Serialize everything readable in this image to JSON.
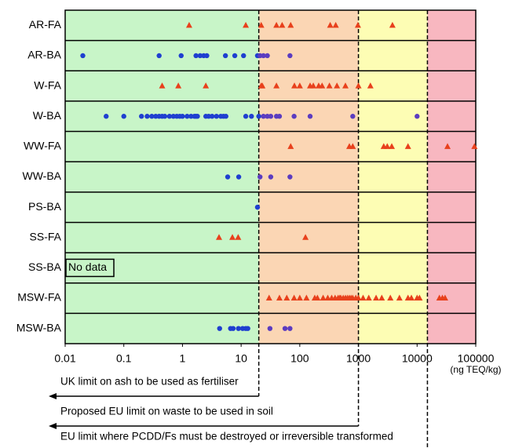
{
  "chart_data": {
    "type": "strip",
    "categories": [
      "AR-FA",
      "AR-BA",
      "W-FA",
      "W-BA",
      "WW-FA",
      "WW-BA",
      "PS-BA",
      "SS-FA",
      "SS-BA",
      "MSW-FA",
      "MSW-BA"
    ],
    "markers": [
      "triangle",
      "circle",
      "triangle",
      "circle",
      "triangle",
      "circle",
      "circle",
      "triangle",
      "circle",
      "triangle",
      "circle"
    ],
    "values": [
      [
        1.3,
        12,
        22,
        40,
        50,
        70,
        330,
        410,
        980,
        3800
      ],
      [
        0.02,
        0.4,
        0.95,
        1.7,
        2.0,
        2.3,
        2.6,
        5.4,
        7.8,
        11,
        19,
        21,
        24,
        28,
        68
      ],
      [
        0.45,
        0.85,
        2.5,
        22,
        23,
        40,
        81,
        100,
        150,
        170,
        210,
        240,
        320,
        430,
        600,
        1000,
        1600
      ],
      [
        0.05,
        0.1,
        0.2,
        0.25,
        0.3,
        0.35,
        0.4,
        0.45,
        0.5,
        0.6,
        0.7,
        0.8,
        0.9,
        1.0,
        1.2,
        1.4,
        1.6,
        1.7,
        1.8,
        2.5,
        2.8,
        3.2,
        3.8,
        4.5,
        5,
        5.5,
        12,
        15,
        20,
        24,
        28,
        32,
        40,
        45,
        80,
        150,
        800,
        10000
      ],
      [
        70,
        700,
        800,
        2700,
        3100,
        3700,
        7000,
        33000,
        95000
      ],
      [
        5.9,
        9.1,
        21,
        32,
        68
      ],
      [
        19
      ],
      [
        4.2,
        7.1,
        8.9,
        125
      ],
      [],
      [
        30,
        45,
        60,
        80,
        100,
        130,
        180,
        200,
        250,
        300,
        350,
        400,
        450,
        480,
        500,
        550,
        600,
        650,
        700,
        750,
        800,
        900,
        1000,
        1200,
        1500,
        2000,
        2500,
        3500,
        5000,
        7000,
        8000,
        10000,
        11000,
        24000,
        27000,
        30000
      ],
      [
        4.3,
        6.6,
        7.3,
        9,
        10.6,
        12,
        13,
        31,
        56,
        68
      ]
    ],
    "no_data": "SS-BA",
    "no_data_label": "No data",
    "marker_colors": {
      "triangle": "#e8401c",
      "circle": "#1f3fd0",
      "circle_above_limit": "#5b3cc0"
    },
    "log_x": true,
    "xlim": [
      0.01,
      100000
    ],
    "xticks": [
      0.01,
      0.1,
      1,
      10,
      100,
      1000,
      10000,
      100000
    ],
    "x_label": "(ng TEQ/kg)",
    "thresholds": [
      {
        "value": 20,
        "label": "UK limit on ash to be used as fertiliser"
      },
      {
        "value": 1000,
        "label": "Proposed EU limit on waste to be used in soil"
      },
      {
        "value": 15000,
        "label": "EU limit where PCDD/Fs must be destroyed or irreversible transformed"
      }
    ],
    "zone_colors": [
      "#c8f5c8",
      "#fbd6b4",
      "#fdfdb4",
      "#f8b7c0"
    ]
  }
}
